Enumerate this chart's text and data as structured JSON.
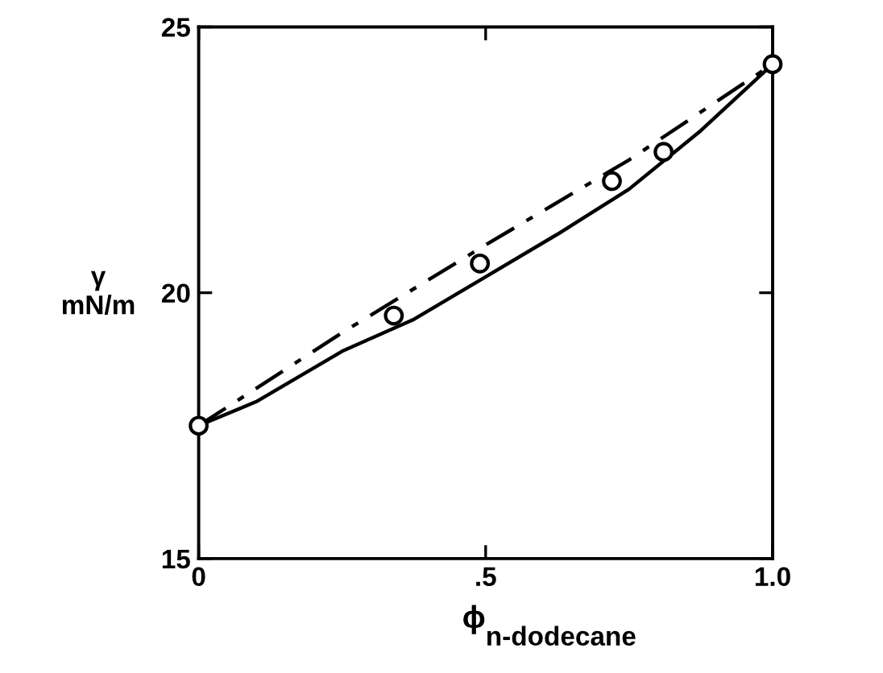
{
  "chart_data": {
    "type": "line",
    "xlabel": "ϕ$_{n-dodecane}$",
    "ylabel": "γ\nmN/m",
    "xlim": [
      0,
      1.0
    ],
    "ylim": [
      15,
      25
    ],
    "xticks": [
      0,
      {
        "value": 0.5,
        "label": ".5"
      },
      {
        "value": 1.0,
        "label": "1.0"
      }
    ],
    "yticks": [
      15,
      20,
      25
    ],
    "grid": false,
    "legend": false,
    "series": [
      {
        "type": "scatter",
        "color": "#000000",
        "marker": "circle",
        "x": [
          0,
          0.34,
          0.49,
          0.72,
          0.81,
          1.0
        ],
        "values": [
          17.5,
          19.57,
          20.55,
          22.1,
          22.65,
          24.3
        ]
      },
      {
        "color": "#000000",
        "line_style": "solid",
        "marker": "none",
        "x": [
          0,
          0.1,
          0.25,
          0.375,
          0.5,
          0.625,
          0.75,
          0.875,
          1.0
        ],
        "values": [
          17.5,
          17.95,
          18.9,
          19.5,
          20.3,
          21.1,
          21.95,
          23.05,
          24.3
        ]
      },
      {
        "color": "#000000",
        "line_style": "dashed",
        "marker": "none",
        "x": [
          0,
          0.25,
          0.5,
          0.75,
          1.0
        ],
        "values": [
          17.5,
          19.25,
          20.9,
          22.5,
          24.3
        ]
      }
    ]
  }
}
